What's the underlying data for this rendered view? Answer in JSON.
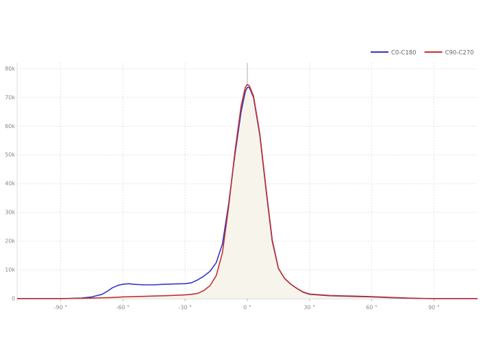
{
  "chart_data": {
    "type": "line",
    "x": [
      -111,
      -90,
      -80,
      -75,
      -70,
      -67,
      -65,
      -62,
      -60,
      -57,
      -55,
      -50,
      -45,
      -40,
      -35,
      -30,
      -27,
      -24,
      -21,
      -18,
      -15,
      -12,
      -9,
      -6,
      -3,
      -1,
      0,
      1,
      3,
      6,
      9,
      12,
      15,
      18,
      21,
      24,
      27,
      30,
      40,
      50,
      60,
      70,
      80,
      90,
      111
    ],
    "series": [
      {
        "name": "C0-C180",
        "color": "#3434c8",
        "values": [
          0,
          0,
          200,
          600,
          1500,
          2800,
          3800,
          4700,
          5000,
          5200,
          5000,
          4800,
          4800,
          5000,
          5100,
          5200,
          5500,
          6500,
          7800,
          9500,
          12500,
          19000,
          33000,
          50000,
          65000,
          72000,
          73500,
          73500,
          70000,
          57000,
          38000,
          20000,
          10500,
          7000,
          5000,
          3500,
          2200,
          1500,
          1000,
          800,
          600,
          300,
          100,
          0,
          0
        ]
      },
      {
        "name": "C90-C270",
        "color": "#c0302c",
        "values": [
          0,
          0,
          100,
          200,
          300,
          350,
          400,
          500,
          600,
          650,
          700,
          800,
          900,
          1000,
          1150,
          1300,
          1500,
          1800,
          2800,
          4500,
          8000,
          16000,
          32000,
          51000,
          67000,
          73500,
          74500,
          74000,
          70500,
          57500,
          38500,
          20500,
          10500,
          7000,
          5000,
          3500,
          2300,
          1600,
          1100,
          900,
          700,
          400,
          150,
          0,
          0
        ]
      }
    ],
    "xlim": [
      -111,
      111
    ],
    "ylim": [
      0,
      82000
    ],
    "xticks": [
      {
        "value": -90,
        "label": "-90 °"
      },
      {
        "value": -60,
        "label": "-60 °"
      },
      {
        "value": -30,
        "label": "-30 °"
      },
      {
        "value": 0,
        "label": "0 °"
      },
      {
        "value": 30,
        "label": "30 °"
      },
      {
        "value": 60,
        "label": "60 °"
      },
      {
        "value": 90,
        "label": "90 °"
      }
    ],
    "yticks": [
      0,
      {
        "value": 10000,
        "label": "10k"
      },
      {
        "value": 20000,
        "label": "20k"
      },
      {
        "value": 30000,
        "label": "30k"
      },
      {
        "value": 40000,
        "label": "40k"
      },
      {
        "value": 50000,
        "label": "50k"
      },
      {
        "value": 60000,
        "label": "60k"
      },
      {
        "value": 70000,
        "label": "70k"
      },
      {
        "value": 80000,
        "label": "80k"
      }
    ],
    "grid": true,
    "legend": "top-right",
    "fill_color": "#f7f4ec"
  }
}
